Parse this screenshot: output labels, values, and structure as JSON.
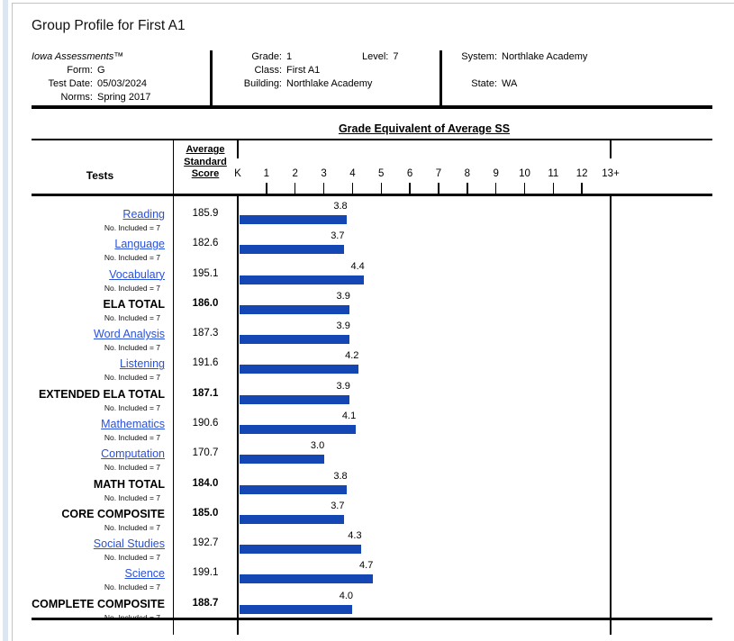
{
  "page": {
    "title": "Group Profile for First A1"
  },
  "info": {
    "product": "Iowa Assessments™",
    "left": [
      {
        "label": "Form:",
        "value": "G"
      },
      {
        "label": "Test Date:",
        "value": "05/03/2024"
      },
      {
        "label": "Norms:",
        "value": "Spring 2017"
      }
    ],
    "middle": [
      {
        "label": "Grade:",
        "value": "1"
      },
      {
        "label": "Class:",
        "value": "First A1"
      },
      {
        "label": "Building:",
        "value": "Northlake Academy"
      }
    ],
    "level": {
      "label": "Level:",
      "value": "7"
    },
    "right": [
      {
        "label": "System:",
        "value": "Northlake Academy"
      },
      {
        "label": "State:",
        "value": "WA"
      }
    ]
  },
  "chart_data": {
    "type": "bar",
    "orientation": "horizontal",
    "title": "Grade Equivalent of Average SS",
    "col_header_tests": "Tests",
    "col_header_avg": [
      "Average",
      "Standard",
      "Score"
    ],
    "sub_label": "No. Included = 7",
    "axis": {
      "labels": [
        "K",
        "1",
        "2",
        "3",
        "4",
        "5",
        "6",
        "7",
        "8",
        "9",
        "10",
        "11",
        "12",
        "13+"
      ],
      "min": 0,
      "max": 13
    },
    "rows": [
      {
        "test": "Reading",
        "link": true,
        "score": "185.9",
        "ge": 3.8
      },
      {
        "test": "Language",
        "link": true,
        "score": "182.6",
        "ge": 3.7
      },
      {
        "test": "Vocabulary",
        "link": true,
        "score": "195.1",
        "ge": 4.4
      },
      {
        "test": "ELA TOTAL",
        "link": false,
        "score": "186.0",
        "ge": 3.9
      },
      {
        "test": "Word Analysis",
        "link": true,
        "score": "187.3",
        "ge": 3.9
      },
      {
        "test": "Listening",
        "link": true,
        "score": "191.6",
        "ge": 4.2
      },
      {
        "test": "EXTENDED ELA TOTAL",
        "link": false,
        "score": "187.1",
        "ge": 3.9
      },
      {
        "test": "Mathematics",
        "link": true,
        "score": "190.6",
        "ge": 4.1
      },
      {
        "test": "Computation",
        "link": true,
        "score": "170.7",
        "ge": 3.0
      },
      {
        "test": "MATH TOTAL",
        "link": false,
        "score": "184.0",
        "ge": 3.8
      },
      {
        "test": "CORE COMPOSITE",
        "link": false,
        "score": "185.0",
        "ge": 3.7
      },
      {
        "test": "Social Studies",
        "link": true,
        "score": "192.7",
        "ge": 4.3
      },
      {
        "test": "Science",
        "link": true,
        "score": "199.1",
        "ge": 4.7
      },
      {
        "test": "COMPLETE COMPOSITE",
        "link": false,
        "score": "188.7",
        "ge": 4.0
      }
    ],
    "colors": {
      "bar": "#1446b4",
      "link": "#2950dd"
    }
  }
}
